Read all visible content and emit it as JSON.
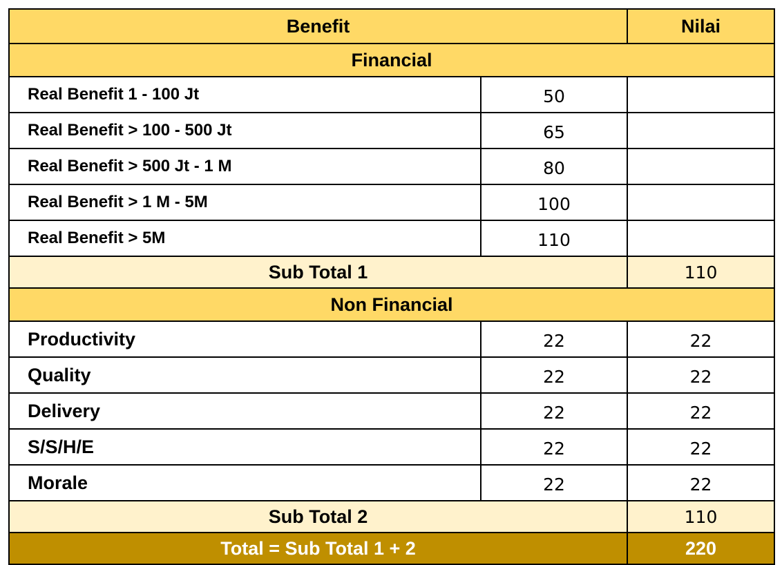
{
  "table": {
    "header": {
      "benefit": "Benefit",
      "nilai": "Nilai"
    },
    "financial": {
      "title": "Financial",
      "rows": [
        {
          "label": "Real Benefit 1 - 100 Jt",
          "value": "50",
          "nilai": ""
        },
        {
          "label": "Real Benefit > 100 - 500 Jt",
          "value": "65",
          "nilai": ""
        },
        {
          "label": "Real Benefit > 500 Jt - 1 M",
          "value": "80",
          "nilai": ""
        },
        {
          "label": "Real Benefit > 1 M - 5M",
          "value": "100",
          "nilai": ""
        },
        {
          "label": "Real Benefit > 5M",
          "value": "110",
          "nilai": ""
        }
      ],
      "subtotal_label": "Sub Total 1",
      "subtotal_value": "110"
    },
    "non_financial": {
      "title": "Non Financial",
      "rows": [
        {
          "label": "Productivity",
          "value": "22",
          "nilai": "22"
        },
        {
          "label": "Quality",
          "value": "22",
          "nilai": "22"
        },
        {
          "label": "Delivery",
          "value": "22",
          "nilai": "22"
        },
        {
          "label": "S/S/H/E",
          "value": "22",
          "nilai": "22"
        },
        {
          "label": "Morale",
          "value": "22",
          "nilai": "22"
        }
      ],
      "subtotal_label": "Sub Total 2",
      "subtotal_value": "110"
    },
    "total": {
      "label": "Total = Sub Total 1 + 2",
      "value": "220"
    },
    "colors": {
      "header": "#ffd966",
      "subtotal": "#fff2cc",
      "total": "#bf8f00"
    }
  }
}
